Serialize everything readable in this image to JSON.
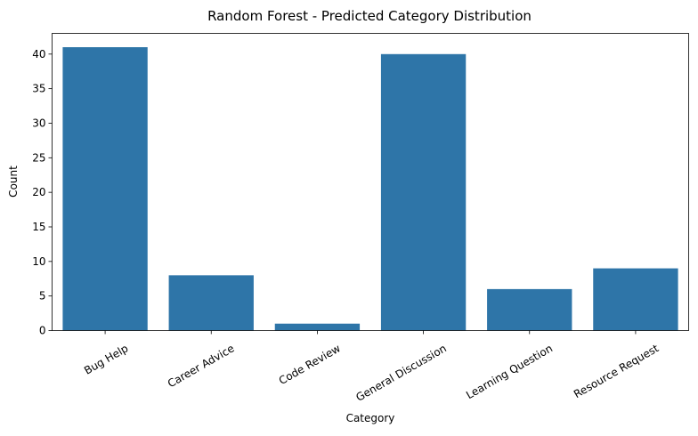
{
  "chart_data": {
    "type": "bar",
    "title": "Random Forest - Predicted Category Distribution",
    "xlabel": "Category",
    "ylabel": "Count",
    "categories": [
      "Bug Help",
      "Career Advice",
      "Code Review",
      "General Discussion",
      "Learning Question",
      "Resource Request"
    ],
    "values": [
      41,
      8,
      1,
      40,
      6,
      9
    ],
    "ylim": [
      0,
      43
    ],
    "yticks": [
      0,
      5,
      10,
      15,
      20,
      25,
      30,
      35,
      40
    ],
    "bar_color": "#2e75a8",
    "x_tick_rotation": 30,
    "grid": false,
    "legend": "none"
  }
}
